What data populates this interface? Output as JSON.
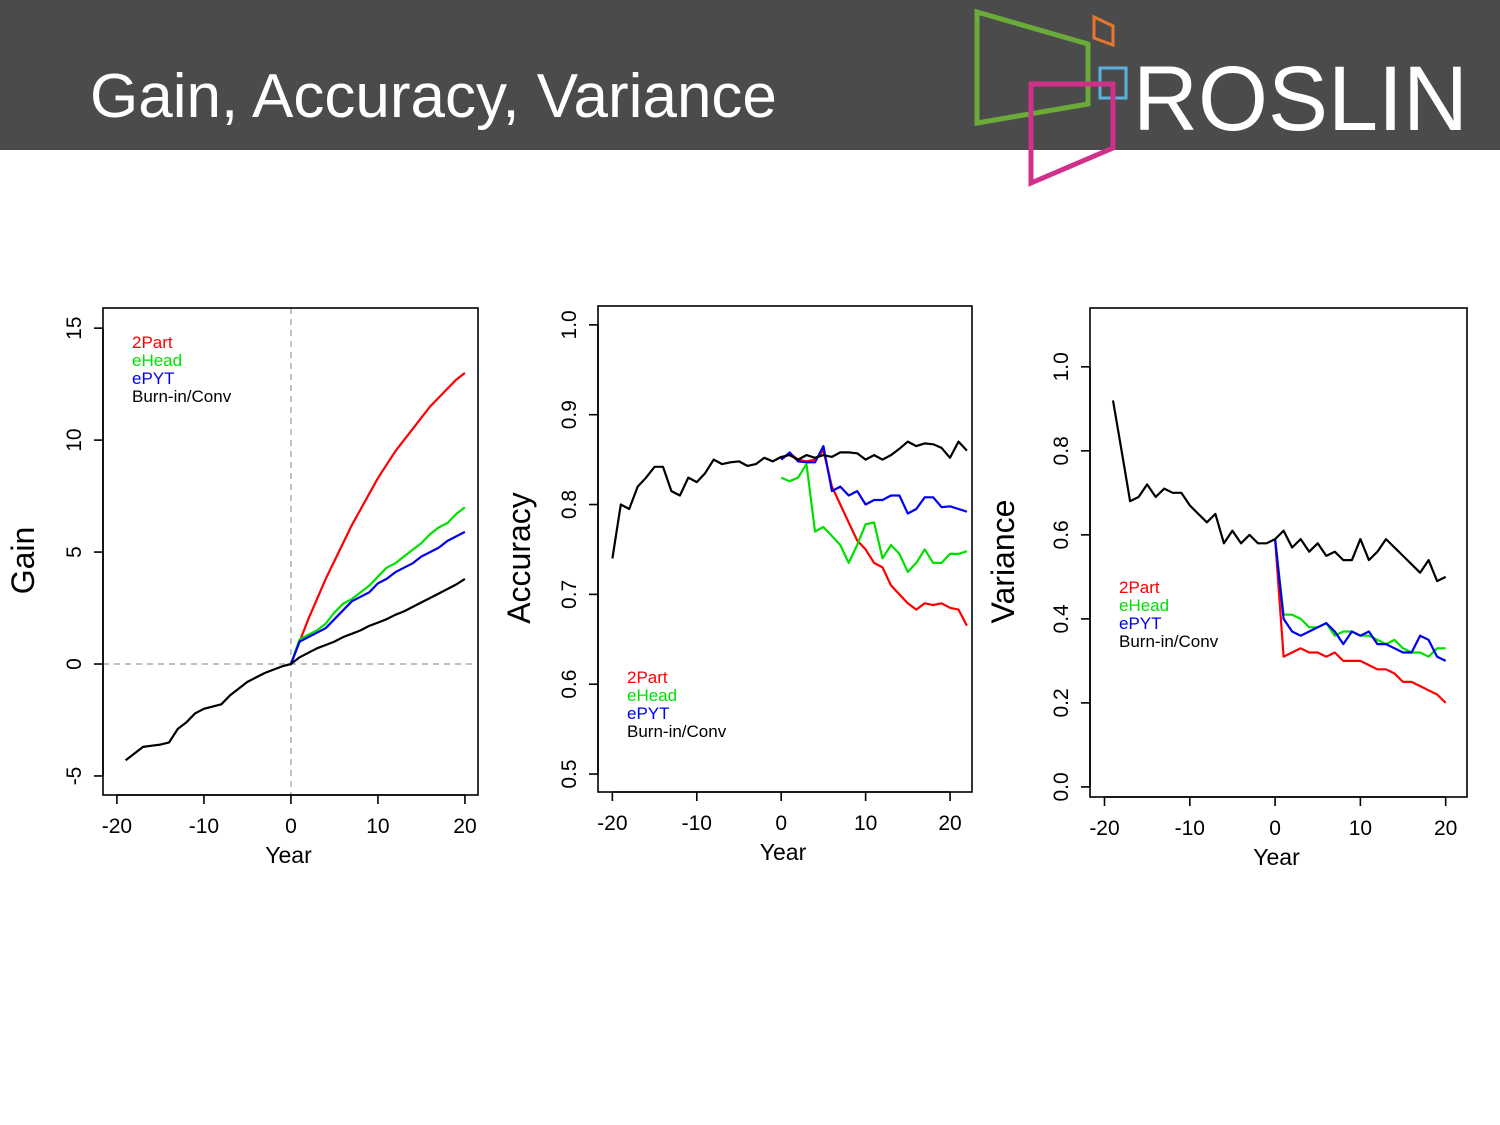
{
  "title": "Gain, Accuracy, Variance",
  "logo": "ROSLIN",
  "chart_data": [
    {
      "type": "line",
      "xlabel": "Year",
      "ylabel": "Gain",
      "x": [
        -19,
        -18,
        -17,
        -16,
        -15,
        -14,
        -13,
        -12,
        -11,
        -10,
        -9,
        -8,
        -7,
        -6,
        -5,
        -4,
        -3,
        -2,
        -1,
        0,
        1,
        2,
        3,
        4,
        5,
        6,
        7,
        8,
        9,
        10,
        11,
        12,
        13,
        14,
        15,
        16,
        17,
        18,
        19,
        20
      ],
      "xlim": [
        -21.6,
        21.5
      ],
      "xticks": [
        -20,
        -10,
        0,
        10,
        20
      ],
      "ylim": [
        -5.85,
        15.9
      ],
      "yticks": [
        -5,
        0,
        5,
        10,
        15
      ],
      "hline": 0,
      "vline": 0,
      "legend": "upper left",
      "series": [
        {
          "name": "2Part",
          "color": "#ff0000",
          "values": [
            null,
            null,
            null,
            null,
            null,
            null,
            null,
            null,
            null,
            null,
            null,
            null,
            null,
            null,
            null,
            null,
            null,
            null,
            null,
            0,
            1.0,
            2.0,
            2.9,
            3.8,
            4.6,
            5.4,
            6.2,
            6.9,
            7.6,
            8.3,
            8.9,
            9.5,
            10.0,
            10.5,
            11.0,
            11.5,
            11.9,
            12.3,
            12.7,
            13.0
          ]
        },
        {
          "name": "eHead",
          "color": "#00e000",
          "values": [
            null,
            null,
            null,
            null,
            null,
            null,
            null,
            null,
            null,
            null,
            null,
            null,
            null,
            null,
            null,
            null,
            null,
            null,
            null,
            0,
            1.1,
            1.3,
            1.5,
            1.8,
            2.3,
            2.7,
            2.9,
            3.2,
            3.5,
            3.9,
            4.3,
            4.5,
            4.8,
            5.1,
            5.4,
            5.8,
            6.1,
            6.3,
            6.7,
            7.0
          ]
        },
        {
          "name": "ePYT",
          "color": "#0000ee",
          "values": [
            null,
            null,
            null,
            null,
            null,
            null,
            null,
            null,
            null,
            null,
            null,
            null,
            null,
            null,
            null,
            null,
            null,
            null,
            null,
            0,
            1.0,
            1.2,
            1.4,
            1.6,
            2.0,
            2.4,
            2.8,
            3.0,
            3.2,
            3.6,
            3.8,
            4.1,
            4.3,
            4.5,
            4.8,
            5.0,
            5.2,
            5.5,
            5.7,
            5.9
          ]
        },
        {
          "name": "Burn-in/Conv",
          "color": "#000000",
          "values": [
            -4.3,
            -4.0,
            -3.7,
            -3.65,
            -3.6,
            -3.5,
            -2.9,
            -2.6,
            -2.2,
            -2.0,
            -1.9,
            -1.8,
            -1.4,
            -1.1,
            -0.8,
            -0.6,
            -0.4,
            -0.25,
            -0.1,
            0,
            0.3,
            0.5,
            0.7,
            0.85,
            1.0,
            1.2,
            1.35,
            1.5,
            1.7,
            1.85,
            2.0,
            2.2,
            2.35,
            2.55,
            2.75,
            2.95,
            3.15,
            3.35,
            3.55,
            3.8
          ]
        }
      ]
    },
    {
      "type": "line",
      "xlabel": "Year",
      "ylabel": "Accuracy",
      "x": [
        -20,
        -19,
        -18,
        -17,
        -16,
        -15,
        -14,
        -13,
        -12,
        -11,
        -10,
        -9,
        -8,
        -7,
        -6,
        -5,
        -4,
        -3,
        -2,
        -1,
        0,
        1,
        2,
        3,
        4,
        5,
        6,
        7,
        8,
        9,
        10,
        11,
        12,
        13,
        14,
        15,
        16,
        17,
        18,
        19,
        20,
        21,
        22
      ],
      "xlim": [
        -21.7,
        22.6
      ],
      "xticks": [
        -20,
        -10,
        0,
        10,
        20
      ],
      "ylim": [
        0.48,
        1.021
      ],
      "yticks": [
        0.5,
        0.6,
        0.7,
        0.8,
        0.9,
        {
          "value": 1,
          "label": "1.0"
        }
      ],
      "legend": "lower left",
      "series": [
        {
          "name": "2Part",
          "color": "#ff0000",
          "values": [
            null,
            null,
            null,
            null,
            null,
            null,
            null,
            null,
            null,
            null,
            null,
            null,
            null,
            null,
            null,
            null,
            null,
            null,
            null,
            null,
            0.85,
            0.857,
            0.85,
            0.848,
            0.85,
            0.86,
            0.82,
            0.8,
            0.78,
            0.76,
            0.75,
            0.735,
            0.73,
            0.71,
            0.7,
            0.69,
            0.683,
            0.69,
            0.688,
            0.69,
            0.685,
            0.683,
            0.665
          ]
        },
        {
          "name": "eHead",
          "color": "#00e000",
          "values": [
            null,
            null,
            null,
            null,
            null,
            null,
            null,
            null,
            null,
            null,
            null,
            null,
            null,
            null,
            null,
            null,
            null,
            null,
            null,
            null,
            0.83,
            0.826,
            0.83,
            0.845,
            0.77,
            0.775,
            0.765,
            0.755,
            0.735,
            0.755,
            0.778,
            0.78,
            0.74,
            0.755,
            0.745,
            0.725,
            0.735,
            0.75,
            0.735,
            0.735,
            0.745,
            0.745,
            0.748
          ]
        },
        {
          "name": "ePYT",
          "color": "#0000ee",
          "values": [
            null,
            null,
            null,
            null,
            null,
            null,
            null,
            null,
            null,
            null,
            null,
            null,
            null,
            null,
            null,
            null,
            null,
            null,
            null,
            null,
            0.85,
            0.858,
            0.848,
            0.847,
            0.847,
            0.865,
            0.815,
            0.82,
            0.81,
            0.815,
            0.8,
            0.805,
            0.805,
            0.81,
            0.81,
            0.79,
            0.795,
            0.808,
            0.808,
            0.797,
            0.798,
            0.795,
            0.792
          ]
        },
        {
          "name": "Burn-in/Conv",
          "color": "#000000",
          "values": [
            0.74,
            0.8,
            0.795,
            0.82,
            0.83,
            0.842,
            0.842,
            0.815,
            0.81,
            0.83,
            0.825,
            0.835,
            0.85,
            0.845,
            0.847,
            0.848,
            0.843,
            0.845,
            0.852,
            0.848,
            0.853,
            0.855,
            0.85,
            0.855,
            0.852,
            0.855,
            0.853,
            0.858,
            0.858,
            0.857,
            0.85,
            0.855,
            0.85,
            0.855,
            0.862,
            0.87,
            0.865,
            0.868,
            0.867,
            0.863,
            0.852,
            0.87,
            0.86
          ]
        }
      ]
    },
    {
      "type": "line",
      "xlabel": "Year",
      "ylabel": "Variance",
      "x": [
        -19,
        -18,
        -17,
        -16,
        -15,
        -14,
        -13,
        -12,
        -11,
        -10,
        -9,
        -8,
        -7,
        -6,
        -5,
        -4,
        -3,
        -2,
        -1,
        0,
        1,
        2,
        3,
        4,
        5,
        6,
        7,
        8,
        9,
        10,
        11,
        12,
        13,
        14,
        15,
        16,
        17,
        18,
        19,
        20
      ],
      "xlim": [
        -21.7,
        22.5
      ],
      "xticks": [
        -20,
        -10,
        0,
        10,
        20
      ],
      "ylim": [
        -0.024,
        1.14
      ],
      "yticks": [
        {
          "value": 0,
          "label": "0.0"
        },
        0.2,
        0.4,
        0.6,
        0.8,
        {
          "value": 1,
          "label": "1.0"
        }
      ],
      "legend": "center left",
      "series": [
        {
          "name": "2Part",
          "color": "#ff0000",
          "values": [
            null,
            null,
            null,
            null,
            null,
            null,
            null,
            null,
            null,
            null,
            null,
            null,
            null,
            null,
            null,
            null,
            null,
            null,
            null,
            0.59,
            0.31,
            0.32,
            0.33,
            0.32,
            0.32,
            0.31,
            0.32,
            0.3,
            0.3,
            0.3,
            0.29,
            0.28,
            0.28,
            0.27,
            0.25,
            0.25,
            0.24,
            0.23,
            0.22,
            0.2
          ]
        },
        {
          "name": "eHead",
          "color": "#00e000",
          "values": [
            null,
            null,
            null,
            null,
            null,
            null,
            null,
            null,
            null,
            null,
            null,
            null,
            null,
            null,
            null,
            null,
            null,
            null,
            null,
            0.59,
            0.41,
            0.41,
            0.4,
            0.38,
            0.38,
            0.39,
            0.36,
            0.37,
            0.37,
            0.36,
            0.36,
            0.35,
            0.34,
            0.35,
            0.33,
            0.32,
            0.32,
            0.31,
            0.33,
            0.33
          ]
        },
        {
          "name": "ePYT",
          "color": "#0000ee",
          "values": [
            null,
            null,
            null,
            null,
            null,
            null,
            null,
            null,
            null,
            null,
            null,
            null,
            null,
            null,
            null,
            null,
            null,
            null,
            null,
            0.59,
            0.4,
            0.37,
            0.36,
            0.37,
            0.38,
            0.39,
            0.37,
            0.34,
            0.37,
            0.36,
            0.37,
            0.34,
            0.34,
            0.33,
            0.32,
            0.32,
            0.36,
            0.35,
            0.31,
            0.3
          ]
        },
        {
          "name": "Burn-in/Conv",
          "color": "#000000",
          "values": [
            0.92,
            0.8,
            0.68,
            0.69,
            0.72,
            0.69,
            0.71,
            0.7,
            0.7,
            0.67,
            0.65,
            0.63,
            0.65,
            0.58,
            0.61,
            0.58,
            0.6,
            0.58,
            0.58,
            0.59,
            0.61,
            0.57,
            0.59,
            0.56,
            0.58,
            0.55,
            0.56,
            0.54,
            0.54,
            0.59,
            0.54,
            0.56,
            0.59,
            0.57,
            0.55,
            0.53,
            0.51,
            0.54,
            0.49,
            0.5
          ]
        }
      ]
    }
  ]
}
